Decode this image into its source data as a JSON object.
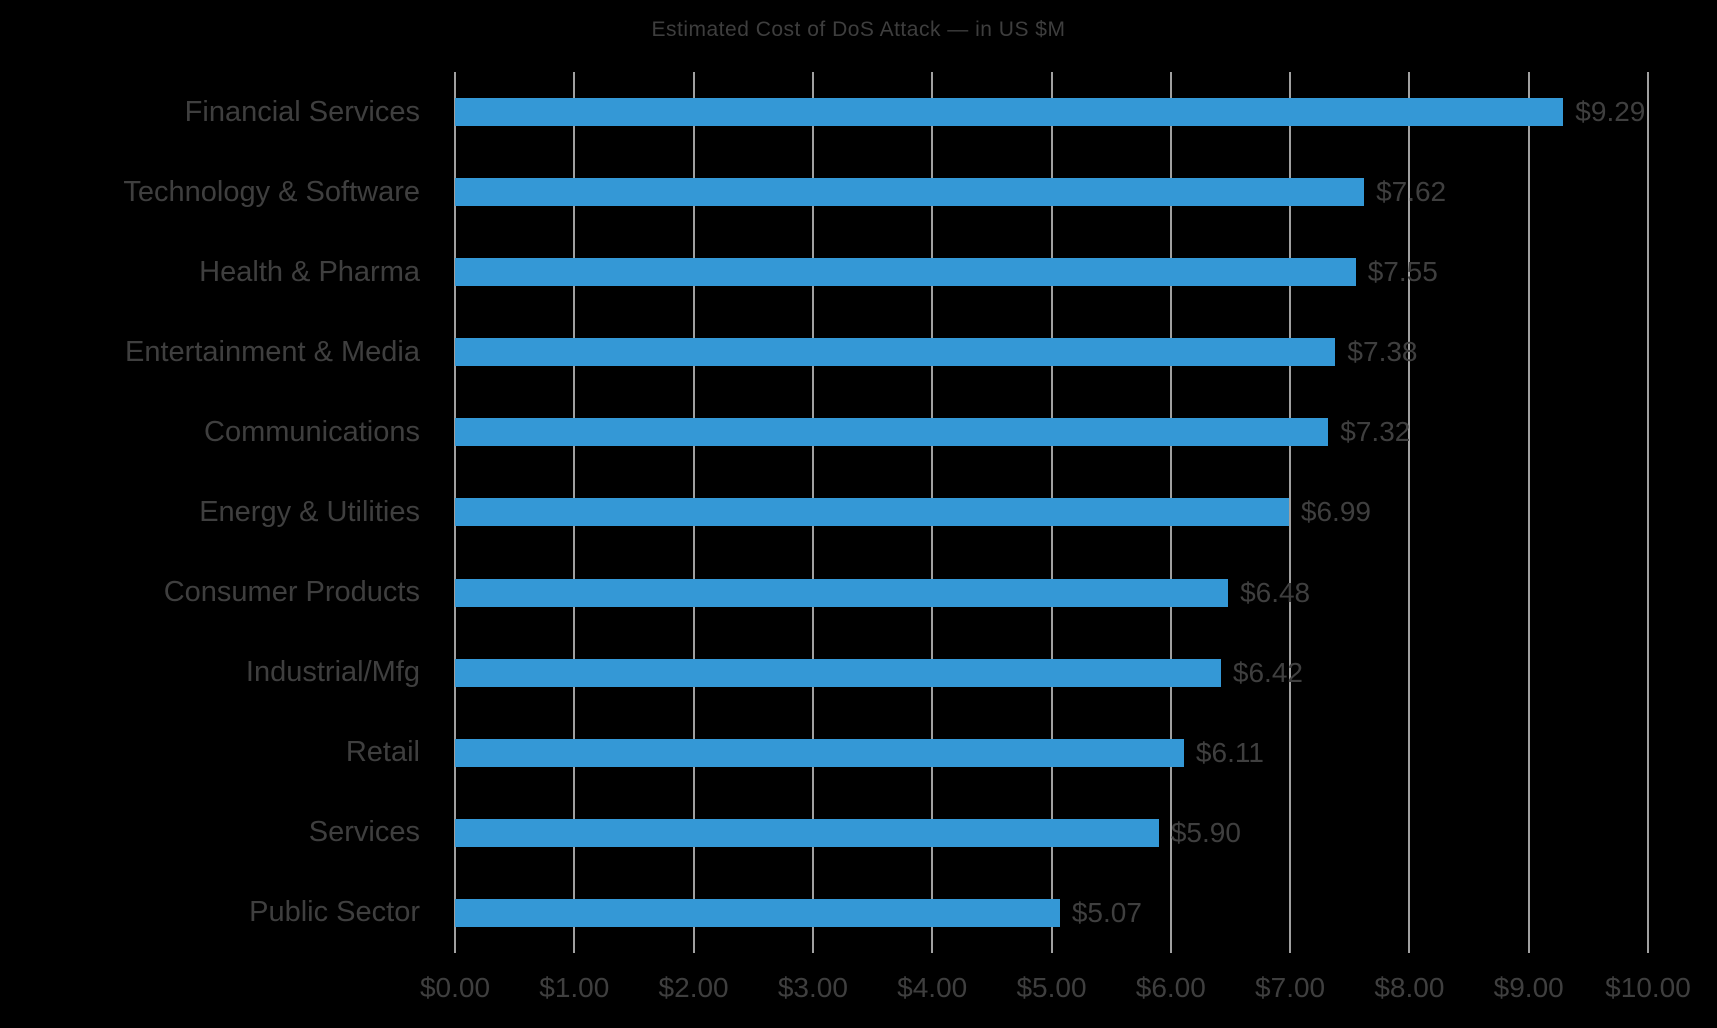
{
  "chart_data": {
    "type": "bar",
    "orientation": "horizontal",
    "title": "Estimated Cost of DoS Attack — in US $M",
    "categories": [
      "Financial Services",
      "Technology & Software",
      "Health & Pharma",
      "Entertainment & Media",
      "Communications",
      "Energy & Utilities",
      "Consumer Products",
      "Industrial/Mfg",
      "Retail",
      "Services",
      "Public Sector"
    ],
    "values": [
      9.29,
      7.62,
      7.55,
      7.38,
      7.32,
      6.99,
      6.48,
      6.42,
      6.11,
      5.9,
      5.07
    ],
    "data_labels": [
      "$9.29",
      "$7.62",
      "$7.55",
      "$7.38",
      "$7.32",
      "$6.99",
      "$6.48",
      "$6.42",
      "$6.11",
      "$5.90",
      "$5.07"
    ],
    "xlabel": "",
    "ylabel": "",
    "xlim": [
      0,
      10
    ],
    "x_tick_values": [
      0,
      1,
      2,
      3,
      4,
      5,
      6,
      7,
      8,
      9,
      10
    ],
    "x_tick_labels": [
      "$0.00",
      "$1.00",
      "$2.00",
      "$3.00",
      "$4.00",
      "$5.00",
      "$6.00",
      "$7.00",
      "$8.00",
      "$9.00",
      "$10.00"
    ],
    "grid": "vertical",
    "legend": "none",
    "colors": {
      "bar": "#3498d6",
      "label_text": "#3f3f3f",
      "title_text": "#3e3e3e",
      "gridline": "#a0a0a0",
      "background": "#000000"
    }
  }
}
